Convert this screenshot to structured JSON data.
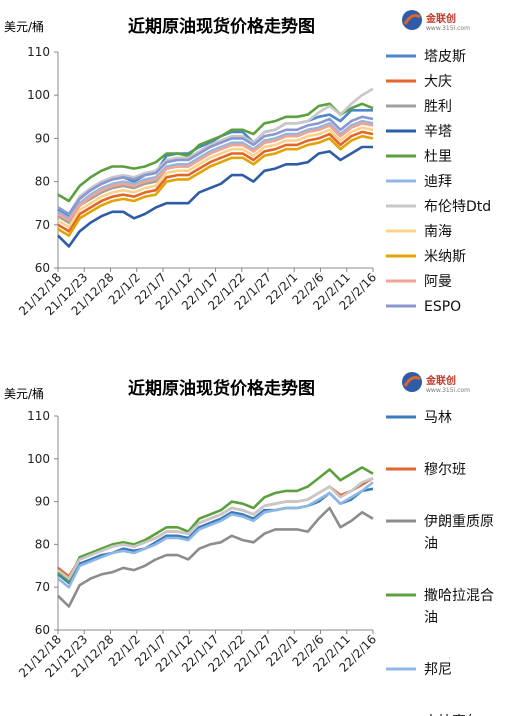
{
  "logo": {
    "name": "金联创",
    "sub": "www.315i.com"
  },
  "chart_data": [
    {
      "type": "line",
      "title": "近期原油现货价格走势图",
      "ylabel": "美元/桶",
      "ylim": [
        60,
        110
      ],
      "yticks": [
        60,
        70,
        80,
        90,
        100,
        110
      ],
      "xticks": [
        "21/12/18",
        "21/12/23",
        "21/12/28",
        "22/1/2",
        "22/1/7",
        "22/1/12",
        "22/1/17",
        "22/1/22",
        "22/1/27",
        "22/2/1",
        "22/2/6",
        "22/2/11",
        "22/2/16"
      ],
      "legend_position": "right",
      "series": [
        {
          "name": "塔皮斯",
          "color": "#4a86c8",
          "values": [
            73.5,
            72.0,
            76.5,
            78.0,
            79.5,
            80.5,
            81.0,
            80.0,
            81.5,
            82.0,
            86.0,
            86.5,
            86.5,
            88.0,
            89.0,
            90.5,
            91.5,
            91.5,
            89.0,
            91.5,
            92.0,
            93.5,
            93.5,
            94.0,
            95.0,
            95.5,
            94.0,
            96.5,
            96.5,
            96.5
          ]
        },
        {
          "name": "大庆",
          "color": "#e2652b",
          "values": [
            70.0,
            68.5,
            72.5,
            74.0,
            75.5,
            76.5,
            77.0,
            76.5,
            77.5,
            78.0,
            81.0,
            81.5,
            81.5,
            83.0,
            84.5,
            85.5,
            86.5,
            86.5,
            85.0,
            87.0,
            87.5,
            88.5,
            88.5,
            89.5,
            90.0,
            91.0,
            88.5,
            90.5,
            91.5,
            91.0
          ]
        },
        {
          "name": "胜利",
          "color": "#a0a0a0",
          "values": [
            72.0,
            70.5,
            74.5,
            76.0,
            77.5,
            78.5,
            79.0,
            78.5,
            79.5,
            80.0,
            83.0,
            83.5,
            83.5,
            85.0,
            86.5,
            87.5,
            88.5,
            88.5,
            87.0,
            89.0,
            89.5,
            90.5,
            90.5,
            91.5,
            92.0,
            93.0,
            90.5,
            92.5,
            93.5,
            93.0
          ]
        },
        {
          "name": "辛塔",
          "color": "#2e5ca8",
          "values": [
            67.5,
            65.0,
            68.5,
            70.5,
            72.0,
            73.0,
            73.0,
            71.5,
            72.5,
            74.0,
            75.0,
            75.0,
            75.0,
            77.5,
            78.5,
            79.5,
            81.5,
            81.5,
            80.0,
            82.5,
            83.0,
            84.0,
            84.0,
            84.5,
            86.5,
            87.0,
            85.0,
            86.5,
            88.0,
            88.0
          ]
        },
        {
          "name": "杜里",
          "color": "#5aa03c",
          "values": [
            77.0,
            75.5,
            79.0,
            81.0,
            82.5,
            83.5,
            83.5,
            83.0,
            83.5,
            84.5,
            86.5,
            86.5,
            86.0,
            88.5,
            89.5,
            90.5,
            92.0,
            92.0,
            91.0,
            93.5,
            94.0,
            95.0,
            95.0,
            95.5,
            97.5,
            98.0,
            95.5,
            97.0,
            98.0,
            97.0
          ]
        },
        {
          "name": "迪拜",
          "color": "#8fb7e3",
          "values": [
            73.0,
            71.5,
            75.0,
            77.0,
            78.5,
            79.5,
            80.0,
            79.5,
            80.5,
            81.0,
            83.5,
            84.0,
            84.0,
            85.5,
            87.0,
            88.0,
            89.0,
            89.0,
            87.5,
            89.5,
            90.0,
            91.0,
            91.0,
            92.0,
            92.5,
            93.5,
            91.0,
            93.0,
            94.0,
            93.5
          ]
        },
        {
          "name": "布伦特Dtd",
          "color": "#c8c8c8",
          "values": [
            74.0,
            72.5,
            76.5,
            78.5,
            80.0,
            81.0,
            81.5,
            81.0,
            82.0,
            82.5,
            85.0,
            85.5,
            85.5,
            87.0,
            88.5,
            89.5,
            90.5,
            90.5,
            89.0,
            91.5,
            92.0,
            93.5,
            93.5,
            94.0,
            96.0,
            97.5,
            95.5,
            98.0,
            100.0,
            101.5
          ]
        },
        {
          "name": "南海",
          "color": "#fdd38a",
          "values": [
            71.0,
            69.5,
            73.5,
            75.0,
            76.5,
            77.5,
            78.0,
            77.5,
            78.5,
            79.0,
            82.0,
            82.5,
            82.5,
            84.0,
            85.5,
            86.5,
            87.5,
            87.5,
            86.0,
            88.0,
            88.5,
            89.5,
            89.5,
            90.5,
            91.0,
            92.0,
            89.5,
            91.5,
            92.5,
            92.0
          ]
        },
        {
          "name": "米纳斯",
          "color": "#e2a300",
          "values": [
            69.0,
            67.5,
            71.5,
            73.0,
            74.5,
            75.5,
            76.0,
            75.5,
            76.5,
            77.0,
            80.0,
            80.5,
            80.5,
            82.0,
            83.5,
            84.5,
            85.5,
            85.5,
            84.0,
            86.0,
            86.5,
            87.5,
            87.5,
            88.5,
            89.0,
            90.0,
            87.5,
            89.5,
            90.5,
            90.0
          ]
        },
        {
          "name": "阿曼",
          "color": "#f2a391",
          "values": [
            72.5,
            71.0,
            74.5,
            76.5,
            78.0,
            79.0,
            79.5,
            79.0,
            80.0,
            80.5,
            83.0,
            83.5,
            83.5,
            85.0,
            86.5,
            87.5,
            88.5,
            88.5,
            87.0,
            89.0,
            89.5,
            90.5,
            90.5,
            91.5,
            92.0,
            93.0,
            90.5,
            92.5,
            93.5,
            93.0
          ]
        },
        {
          "name": "ESPO",
          "color": "#8b97d0",
          "values": [
            74.0,
            72.5,
            76.0,
            78.0,
            79.5,
            80.5,
            81.0,
            80.5,
            81.5,
            82.0,
            84.5,
            85.0,
            85.0,
            86.5,
            88.0,
            89.0,
            90.0,
            90.0,
            88.5,
            90.5,
            91.0,
            92.0,
            92.0,
            93.0,
            93.5,
            94.5,
            92.0,
            94.0,
            95.0,
            94.5
          ]
        }
      ]
    },
    {
      "type": "line",
      "title": "近期原油现货价格走势图",
      "ylabel": "美元/桶",
      "ylim": [
        60,
        110
      ],
      "yticks": [
        60,
        70,
        80,
        90,
        100,
        110
      ],
      "xticks": [
        "21/12/18",
        "21/12/23",
        "21/12/28",
        "22/1/2",
        "22/1/7",
        "22/1/12",
        "22/1/17",
        "22/1/22",
        "22/1/27",
        "22/2/1",
        "22/2/6",
        "22/2/11",
        "22/2/16"
      ],
      "legend_position": "right",
      "series": [
        {
          "name": "马林",
          "color": "#3a7abf",
          "values": [
            73.0,
            71.0,
            75.5,
            76.5,
            77.5,
            78.0,
            79.0,
            78.5,
            79.0,
            80.5,
            82.0,
            82.0,
            81.5,
            84.0,
            85.0,
            86.0,
            87.5,
            87.0,
            86.0,
            88.0,
            88.0,
            88.5,
            88.5,
            89.0,
            90.0,
            92.0,
            89.5,
            90.5,
            92.5,
            93.0
          ]
        },
        {
          "name": "穆尔班",
          "color": "#e2652b",
          "values": [
            74.5,
            72.5,
            76.5,
            77.5,
            78.5,
            79.5,
            80.0,
            79.5,
            80.5,
            81.5,
            83.0,
            83.0,
            82.5,
            85.0,
            86.0,
            87.0,
            88.5,
            88.0,
            87.0,
            89.0,
            89.5,
            90.0,
            90.0,
            90.5,
            92.0,
            93.5,
            91.5,
            92.5,
            94.0,
            95.5
          ]
        },
        {
          "name": "伊朗重质原油",
          "color": "#8c8c8c",
          "values": [
            68.0,
            65.5,
            70.5,
            72.0,
            73.0,
            73.5,
            74.5,
            74.0,
            75.0,
            76.5,
            77.5,
            77.5,
            76.5,
            79.0,
            80.0,
            80.5,
            82.0,
            81.0,
            80.5,
            82.5,
            83.5,
            83.5,
            83.5,
            83.0,
            86.0,
            88.5,
            84.0,
            85.5,
            87.5,
            86.0
          ]
        },
        {
          "name": "撒哈拉混合油",
          "color": "#5aa03c",
          "values": [
            73.5,
            71.5,
            77.0,
            78.0,
            79.0,
            80.0,
            80.5,
            80.0,
            81.0,
            82.5,
            84.0,
            84.0,
            83.0,
            86.0,
            87.0,
            88.0,
            90.0,
            89.5,
            88.5,
            91.0,
            92.0,
            92.5,
            92.5,
            93.5,
            95.5,
            97.5,
            95.0,
            96.5,
            98.0,
            96.5
          ]
        },
        {
          "name": "邦尼",
          "color": "#8fb7e3",
          "values": [
            72.0,
            70.0,
            75.0,
            76.0,
            77.0,
            78.0,
            78.5,
            78.0,
            79.0,
            80.0,
            81.5,
            81.5,
            81.0,
            83.5,
            84.5,
            85.5,
            87.0,
            86.5,
            85.5,
            87.5,
            88.0,
            88.5,
            88.5,
            89.0,
            90.5,
            92.0,
            89.5,
            91.0,
            92.5,
            94.5
          ]
        },
        {
          "name": "吉拉索尔",
          "color": "#c8c8c8",
          "values": [
            74.0,
            72.0,
            76.5,
            77.5,
            78.5,
            79.5,
            80.0,
            79.5,
            80.5,
            81.5,
            83.0,
            83.0,
            82.5,
            85.0,
            86.0,
            87.0,
            88.5,
            88.0,
            87.0,
            89.0,
            89.5,
            90.0,
            90.0,
            90.5,
            92.0,
            93.5,
            91.0,
            92.5,
            94.5,
            95.5
          ]
        }
      ]
    }
  ]
}
